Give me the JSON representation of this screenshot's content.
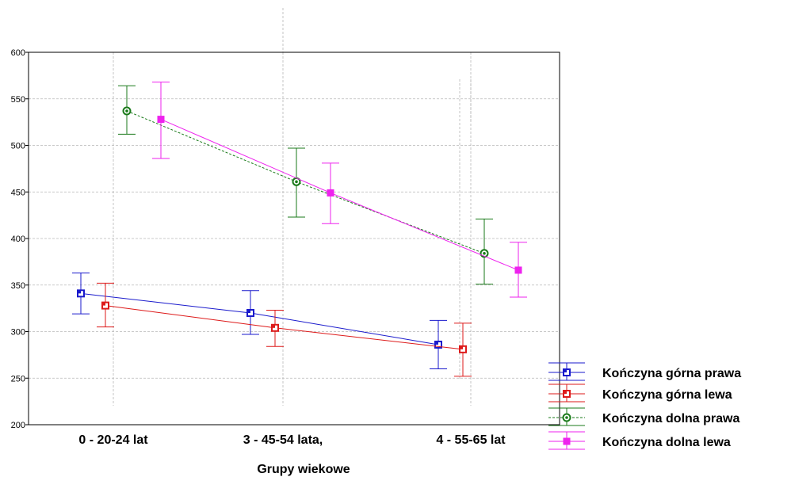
{
  "chart_data": {
    "type": "line",
    "categories": [
      "0 - 20-24 lat",
      "3 - 45-54 lata,",
      "4 - 55-65 lat"
    ],
    "xlabel": "Grupy wiekowe",
    "ylabel": "",
    "ylim": [
      200,
      600
    ],
    "yticks": [
      200,
      250,
      300,
      350,
      400,
      450,
      500,
      550,
      600
    ],
    "grid": true,
    "legend_position": "bottom-right",
    "series": [
      {
        "name": "Kończyna górna prawa",
        "color": "#1a1acc",
        "marker": "square",
        "line": "solid",
        "values": [
          341,
          320,
          286
        ],
        "ci_low": [
          319,
          297,
          260
        ],
        "ci_high": [
          363,
          344,
          312
        ]
      },
      {
        "name": "Kończyna górna lewa",
        "color": "#dd1a1a",
        "marker": "square",
        "line": "solid",
        "values": [
          328,
          304,
          281
        ],
        "ci_low": [
          305,
          284,
          252
        ],
        "ci_high": [
          352,
          323,
          309
        ]
      },
      {
        "name": "Kończyna dolna prawa",
        "color": "#1a7a1a",
        "marker": "circle",
        "line": "dashed",
        "values": [
          537,
          461,
          384
        ],
        "ci_low": [
          512,
          423,
          351
        ],
        "ci_high": [
          564,
          497,
          421
        ]
      },
      {
        "name": "Kończyna dolna lewa",
        "color": "#ee22ee",
        "marker": "triangle",
        "line": "solid",
        "values": [
          528,
          449,
          366
        ],
        "ci_low": [
          486,
          416,
          337
        ],
        "ci_high": [
          568,
          481,
          396
        ]
      }
    ]
  }
}
